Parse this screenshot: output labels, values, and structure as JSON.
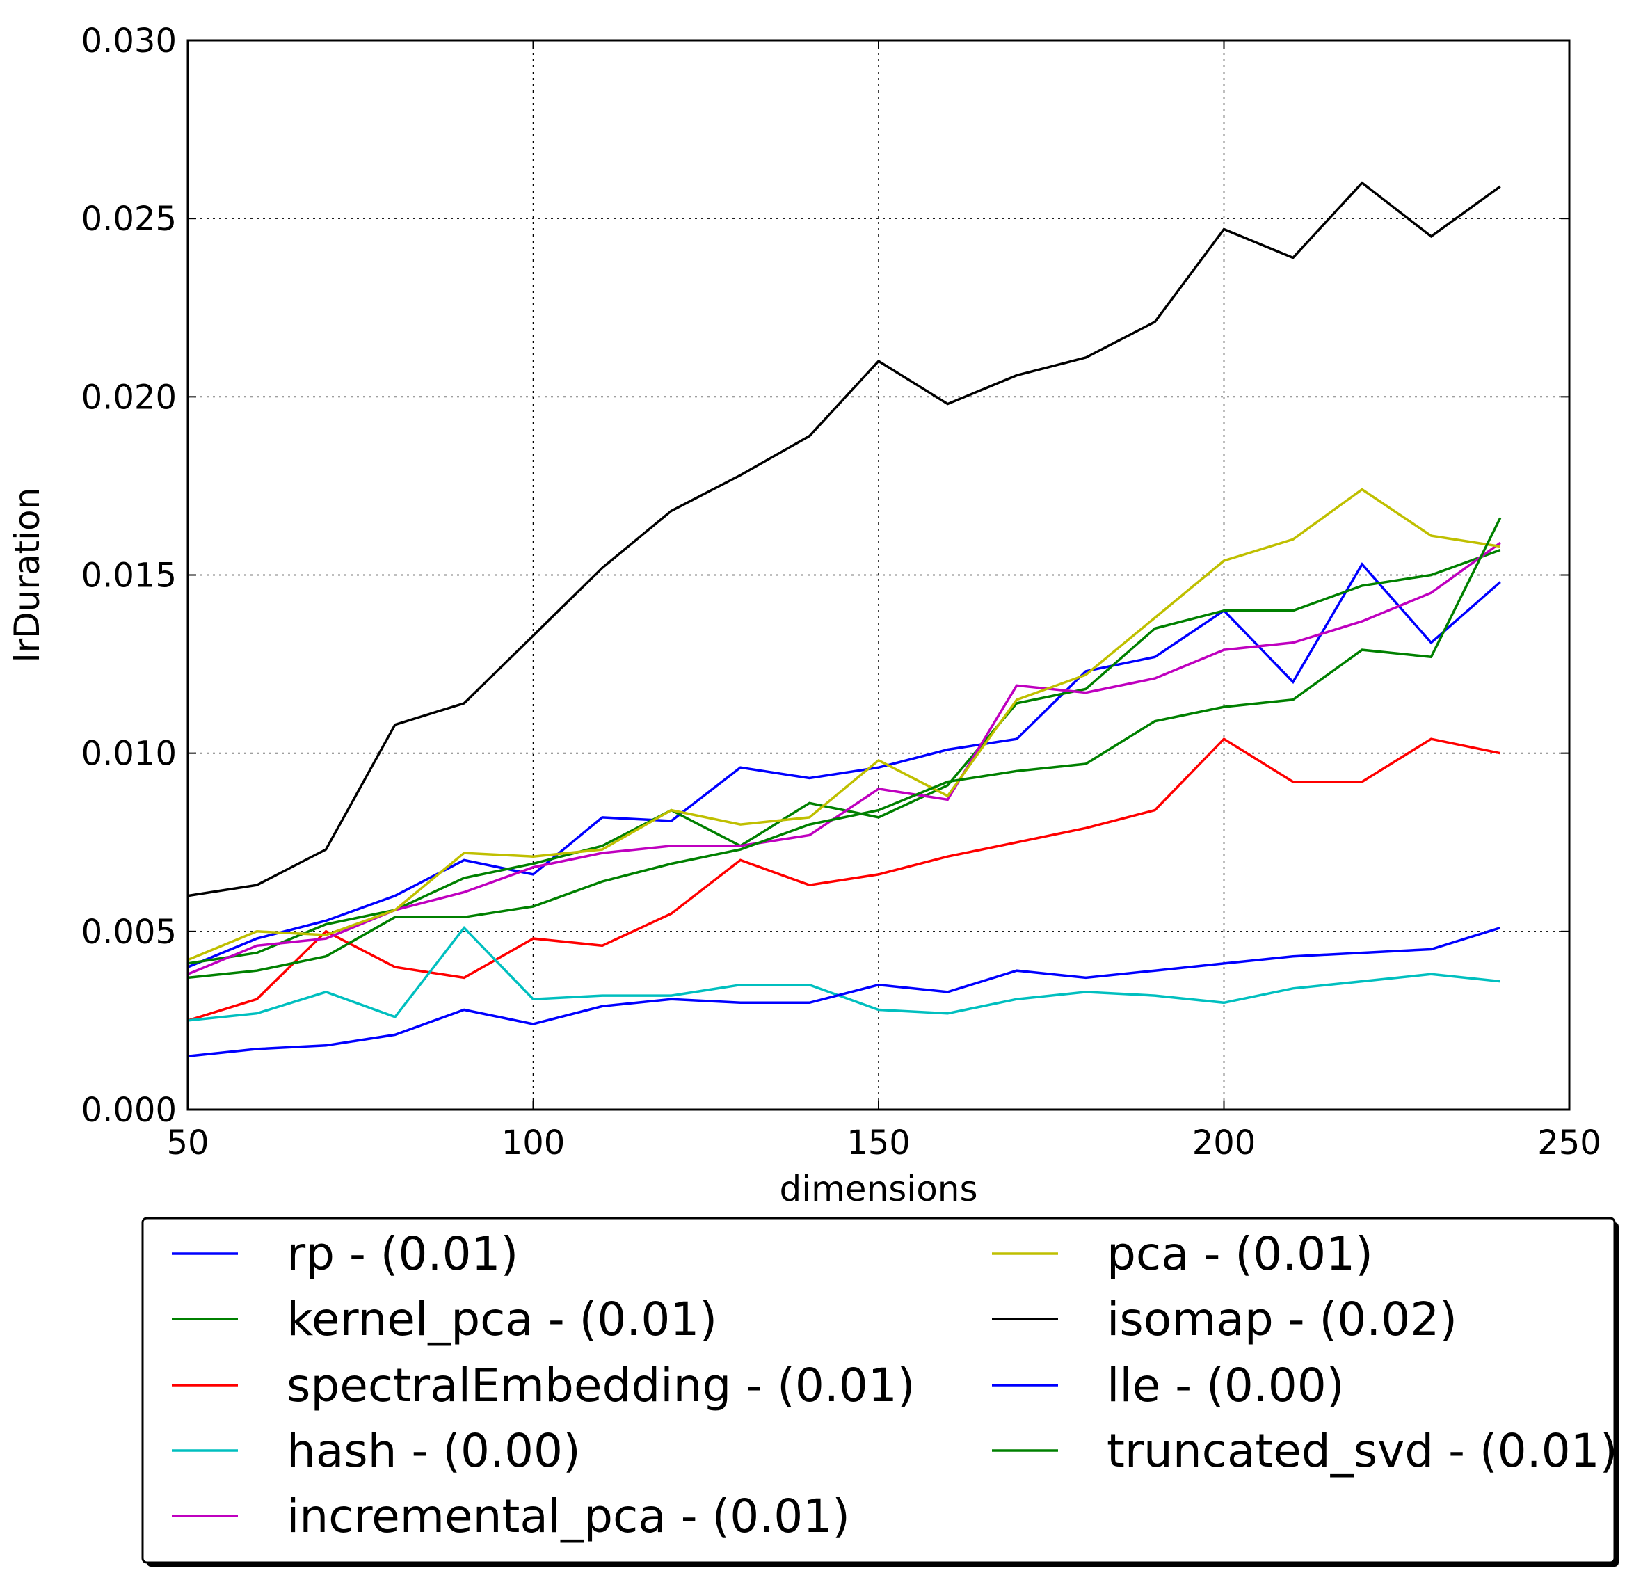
{
  "chart_data": {
    "type": "line",
    "xlabel": "dimensions",
    "ylabel": "lrDuration",
    "xlim": [
      50,
      250
    ],
    "ylim": [
      0,
      0.03
    ],
    "x_ticks": [
      "50",
      "100",
      "150",
      "200",
      "250"
    ],
    "y_ticks": [
      "0.000",
      "0.005",
      "0.010",
      "0.015",
      "0.020",
      "0.025",
      "0.030"
    ],
    "grid": true,
    "legend_placement": "below",
    "x": [
      50,
      60,
      70,
      80,
      90,
      100,
      110,
      120,
      130,
      140,
      150,
      160,
      170,
      180,
      190,
      200,
      210,
      220,
      230,
      240
    ],
    "series": [
      {
        "name": "rp - (0.01)",
        "color": "#0000ff",
        "values": [
          0.004,
          0.0048,
          0.0053,
          0.006,
          0.007,
          0.0066,
          0.0082,
          0.0081,
          0.0096,
          0.0093,
          0.0096,
          0.0101,
          0.0104,
          0.0123,
          0.0127,
          0.014,
          0.012,
          0.0153,
          0.0131,
          0.0148
        ]
      },
      {
        "name": "kernel_pca - (0.01)",
        "color": "#008000",
        "values": [
          0.0041,
          0.0044,
          0.0052,
          0.0056,
          0.0065,
          0.0069,
          0.0074,
          0.0084,
          0.0074,
          0.0086,
          0.0082,
          0.0091,
          0.0114,
          0.0118,
          0.0135,
          0.014,
          0.014,
          0.0147,
          0.015,
          0.0157
        ]
      },
      {
        "name": "spectralEmbedding - (0.01)",
        "color": "#ff0000",
        "values": [
          0.0025,
          0.0031,
          0.005,
          0.004,
          0.0037,
          0.0048,
          0.0046,
          0.0055,
          0.007,
          0.0063,
          0.0066,
          0.0071,
          0.0075,
          0.0079,
          0.0084,
          0.0104,
          0.0092,
          0.0092,
          0.0104,
          0.01
        ]
      },
      {
        "name": "hash - (0.00)",
        "color": "#00bfbf",
        "values": [
          0.0025,
          0.0027,
          0.0033,
          0.0026,
          0.0051,
          0.0031,
          0.0032,
          0.0032,
          0.0035,
          0.0035,
          0.0028,
          0.0027,
          0.0031,
          0.0033,
          0.0032,
          0.003,
          0.0034,
          0.0036,
          0.0038,
          0.0036
        ]
      },
      {
        "name": "incremental_pca - (0.01)",
        "color": "#bf00bf",
        "values": [
          0.0038,
          0.0046,
          0.0048,
          0.0056,
          0.0061,
          0.0068,
          0.0072,
          0.0074,
          0.0074,
          0.0077,
          0.009,
          0.0087,
          0.0119,
          0.0117,
          0.0121,
          0.0129,
          0.0131,
          0.0137,
          0.0145,
          0.0159
        ]
      },
      {
        "name": "pca - (0.01)",
        "color": "#bfbf00",
        "values": [
          0.0042,
          0.005,
          0.0049,
          0.0056,
          0.0072,
          0.0071,
          0.0073,
          0.0084,
          0.008,
          0.0082,
          0.0098,
          0.0088,
          0.0115,
          0.0122,
          0.0138,
          0.0154,
          0.016,
          0.0174,
          0.0161,
          0.0158
        ]
      },
      {
        "name": "isomap - (0.02)",
        "color": "#000000",
        "values": [
          0.006,
          0.0063,
          0.0073,
          0.0108,
          0.0114,
          0.0133,
          0.0152,
          0.0168,
          0.0178,
          0.0189,
          0.021,
          0.0198,
          0.0206,
          0.0211,
          0.0221,
          0.0247,
          0.0239,
          0.026,
          0.0245,
          0.0259
        ]
      },
      {
        "name": "lle - (0.00)",
        "color": "#0000ff",
        "values": [
          0.0015,
          0.0017,
          0.0018,
          0.0021,
          0.0028,
          0.0024,
          0.0029,
          0.0031,
          0.003,
          0.003,
          0.0035,
          0.0033,
          0.0039,
          0.0037,
          0.0039,
          0.0041,
          0.0043,
          0.0044,
          0.0045,
          0.0051
        ]
      },
      {
        "name": "truncated_svd - (0.01)",
        "color": "#008000",
        "values": [
          0.0037,
          0.0039,
          0.0043,
          0.0054,
          0.0054,
          0.0057,
          0.0064,
          0.0069,
          0.0073,
          0.008,
          0.0084,
          0.0092,
          0.0095,
          0.0097,
          0.0109,
          0.0113,
          0.0115,
          0.0129,
          0.0127,
          0.0166
        ]
      }
    ]
  }
}
